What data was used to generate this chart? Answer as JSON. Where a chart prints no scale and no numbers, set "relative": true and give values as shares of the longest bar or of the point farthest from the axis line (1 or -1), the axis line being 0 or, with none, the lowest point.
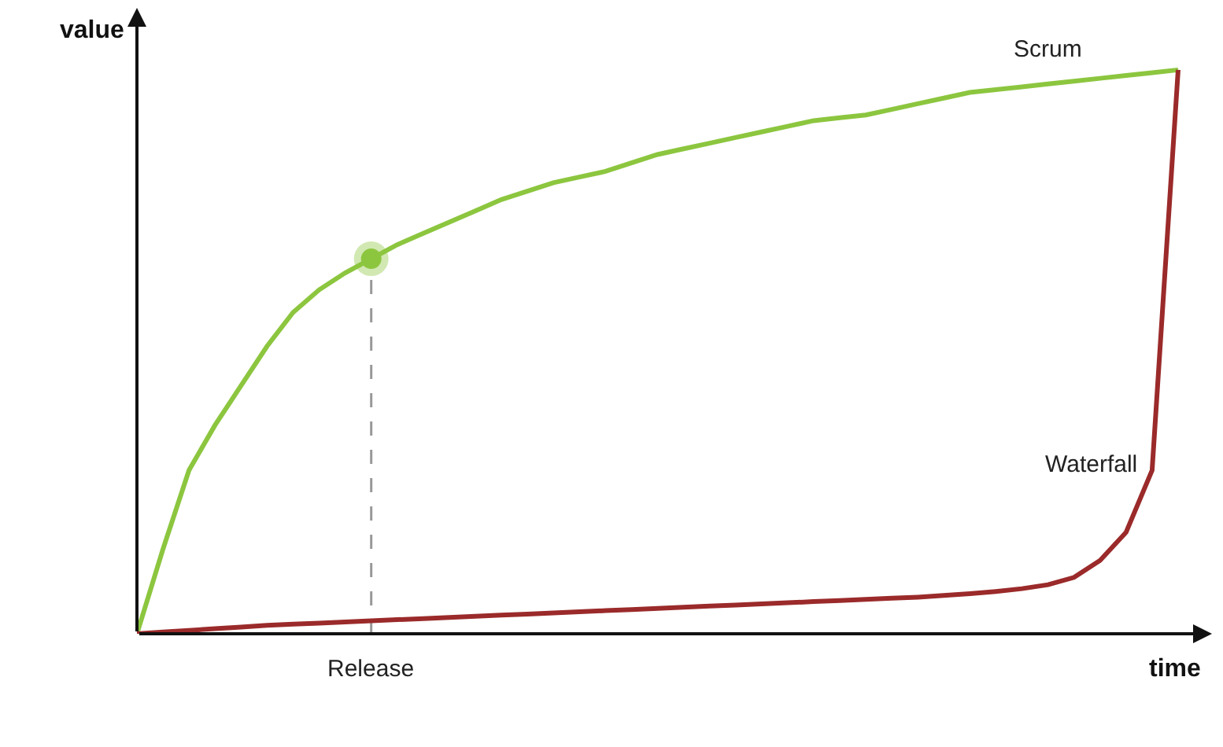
{
  "chart_data": {
    "type": "line",
    "relative": true,
    "xlabel": "time",
    "ylabel": "value",
    "categories": [
      null,
      null,
      null,
      null,
      null,
      null,
      null,
      null,
      null,
      null,
      null,
      null,
      null,
      null,
      null,
      null,
      null,
      null,
      null,
      null,
      null,
      null,
      null,
      null,
      null,
      null,
      null,
      null,
      null,
      null,
      null,
      null,
      null,
      null,
      null,
      null,
      null,
      null,
      null,
      null,
      null
    ],
    "series": [
      {
        "name": "Scrum",
        "color": "#8cc63f",
        "values": [
          0,
          0.15,
          0.29,
          0.37,
          0.44,
          0.51,
          0.57,
          0.61,
          0.64,
          0.665,
          0.69,
          0.71,
          0.73,
          0.75,
          0.77,
          0.785,
          0.8,
          0.81,
          0.82,
          0.835,
          0.85,
          0.86,
          0.87,
          0.88,
          0.89,
          0.9,
          0.91,
          0.915,
          0.92,
          0.93,
          0.94,
          0.95,
          0.96,
          0.965,
          0.97,
          0.975,
          0.98,
          0.985,
          0.99,
          0.995,
          1.0
        ]
      },
      {
        "name": "Waterfall",
        "color": "#9b2a2a",
        "values": [
          0,
          0.003,
          0.006,
          0.009,
          0.012,
          0.015,
          0.017,
          0.019,
          0.021,
          0.023,
          0.025,
          0.027,
          0.029,
          0.031,
          0.033,
          0.035,
          0.037,
          0.039,
          0.041,
          0.043,
          0.045,
          0.047,
          0.049,
          0.051,
          0.053,
          0.055,
          0.057,
          0.059,
          0.061,
          0.063,
          0.065,
          0.068,
          0.071,
          0.075,
          0.08,
          0.087,
          0.1,
          0.13,
          0.18,
          0.29,
          1.0
        ]
      }
    ],
    "annotations": [
      "Release"
    ],
    "marker": "none",
    "line_style": "solid"
  }
}
